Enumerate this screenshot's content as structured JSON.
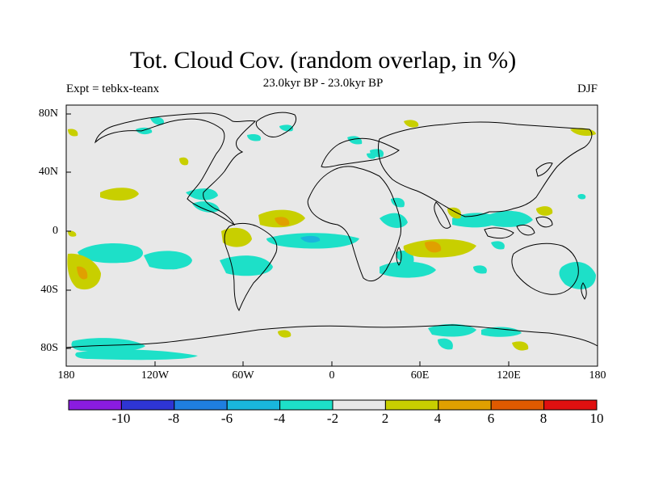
{
  "header": {
    "title": "Tot. Cloud Cov. (random overlap, in %)",
    "subtitle": "23.0kyr BP - 23.0kyr BP",
    "experiment": "Expt = tebkx-teanx",
    "season": "DJF"
  },
  "axes": {
    "lat_labels": [
      "80N",
      "40N",
      "0",
      "40S",
      "80S"
    ],
    "lon_labels": [
      "180",
      "120W",
      "60W",
      "0",
      "60E",
      "120E",
      "180"
    ]
  },
  "colorbar": {
    "labels": [
      "-10",
      "-8",
      "-6",
      "-4",
      "-2",
      "2",
      "4",
      "6",
      "8",
      "10"
    ],
    "colors": [
      "#8a1ce0",
      "#2e35d4",
      "#1f7fe0",
      "#19b6dc",
      "#1de0c8",
      "#e8e8e8",
      "#c8cf00",
      "#e0a000",
      "#e05a00",
      "#e01010"
    ]
  },
  "map": {
    "background_color": "#e8e8e8",
    "projection": "cylindrical-equidistant",
    "lon_range": [
      -180,
      180
    ],
    "lat_range": [
      -90,
      90
    ]
  }
}
